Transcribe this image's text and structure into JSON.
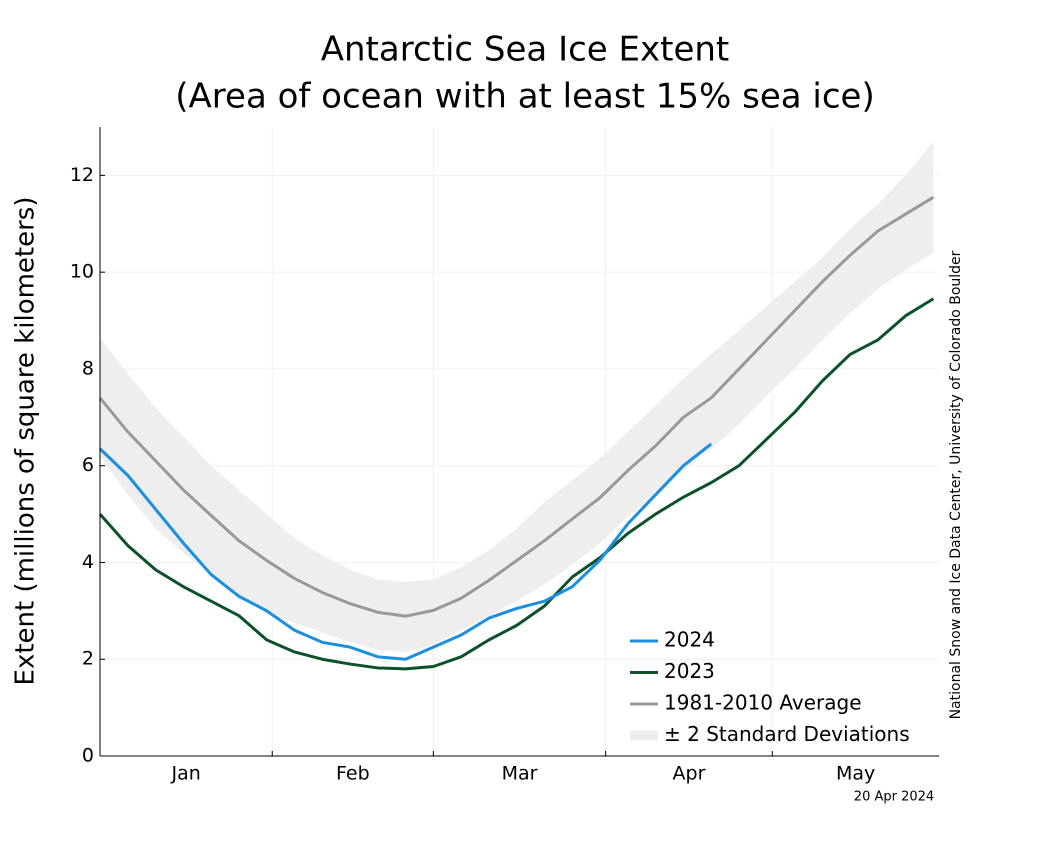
{
  "chart_data": {
    "type": "line",
    "title": "Antarctic Sea Ice Extent",
    "subtitle": "(Area of ocean with at least 15% sea ice)",
    "y_label": "Extent (millions of square kilometers)",
    "credit": "National Snow and Ice Data Center, University of Colorado Boulder",
    "date": "20 Apr 2024",
    "x": [
      1,
      6,
      11,
      16,
      21,
      26,
      31,
      36,
      41,
      46,
      51,
      56,
      61,
      66,
      71,
      76,
      81,
      86,
      91,
      96,
      101,
      106,
      111,
      116,
      121,
      126,
      131,
      136,
      141,
      146,
      151
    ],
    "xlim": [
      1,
      152
    ],
    "xticks": [
      {
        "value": 16.5,
        "label": "Jan"
      },
      {
        "value": 46.5,
        "label": "Feb"
      },
      {
        "value": 76.5,
        "label": "Mar"
      },
      {
        "value": 107,
        "label": "Apr"
      },
      {
        "value": 137,
        "label": "May"
      }
    ],
    "month_boundaries": [
      32,
      61,
      92,
      122
    ],
    "ylim": [
      0,
      13
    ],
    "yticks": [
      0,
      2,
      4,
      6,
      8,
      10,
      12
    ],
    "grid": true,
    "legend": "lower right",
    "band": {
      "name": "± 2 Standard Deviations",
      "color": "#eeeeee",
      "upper": [
        8.65,
        7.9,
        7.2,
        6.6,
        6.0,
        5.5,
        5.0,
        4.5,
        4.15,
        3.85,
        3.65,
        3.6,
        3.65,
        3.9,
        4.25,
        4.7,
        5.25,
        5.7,
        6.15,
        6.7,
        7.25,
        7.8,
        8.3,
        8.8,
        9.3,
        9.8,
        10.3,
        10.9,
        11.4,
        12.0,
        12.7
      ],
      "lower": [
        6.2,
        5.4,
        4.7,
        4.2,
        3.75,
        3.3,
        2.95,
        2.75,
        2.55,
        2.35,
        2.2,
        2.15,
        2.3,
        2.6,
        2.9,
        3.2,
        3.55,
        3.95,
        4.4,
        4.95,
        5.4,
        5.9,
        6.35,
        6.85,
        7.45,
        8.0,
        8.6,
        9.15,
        9.65,
        10.05,
        10.4
      ]
    },
    "series": [
      {
        "name": "2024",
        "color": "#1a8fe0",
        "values": [
          6.35,
          5.8,
          5.1,
          4.4,
          3.75,
          3.3,
          3.0,
          2.6,
          2.35,
          2.25,
          2.05,
          2.0,
          2.25,
          2.5,
          2.85,
          3.05,
          3.2,
          3.5,
          4.05,
          4.8,
          5.4,
          6.0,
          6.45,
          null,
          null,
          null,
          null,
          null,
          null,
          null,
          null
        ]
      },
      {
        "name": "2023",
        "color": "#0b5228",
        "values": [
          5.0,
          4.35,
          3.85,
          3.5,
          3.2,
          2.9,
          2.4,
          2.15,
          2.0,
          1.9,
          1.82,
          1.8,
          1.85,
          2.05,
          2.4,
          2.7,
          3.1,
          3.7,
          4.1,
          4.6,
          5.0,
          5.35,
          5.65,
          6.0,
          6.55,
          7.1,
          7.75,
          8.3,
          8.6,
          9.1,
          9.45
        ]
      },
      {
        "name": "1981-2010 Average",
        "color": "#999999",
        "values": [
          7.4,
          6.7,
          6.1,
          5.5,
          4.97,
          4.45,
          4.04,
          3.67,
          3.38,
          3.15,
          2.97,
          2.89,
          3.01,
          3.26,
          3.63,
          4.04,
          4.45,
          4.9,
          5.34,
          5.9,
          6.41,
          7.0,
          7.4,
          8.0,
          8.6,
          9.2,
          9.8,
          10.35,
          10.85,
          11.2,
          11.55
        ]
      }
    ]
  }
}
